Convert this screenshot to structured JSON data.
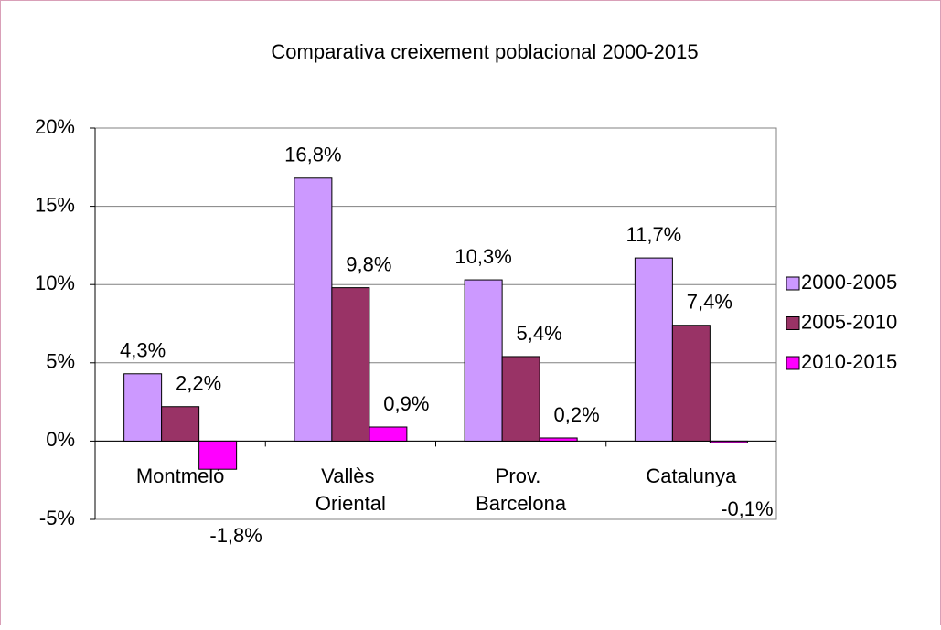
{
  "chart_data": {
    "type": "bar",
    "title": "Comparativa creixement poblacional 2000-2015",
    "categories": [
      "Montmeló",
      "Vallès Oriental",
      "Prov. Barcelona",
      "Catalunya"
    ],
    "series": [
      {
        "name": "2000-2005",
        "color": "#cc99ff",
        "values": [
          4.3,
          16.8,
          10.3,
          11.7
        ],
        "value_labels": [
          "4,3%",
          "16,8%",
          "10,3%",
          "11,7%"
        ]
      },
      {
        "name": "2005-2010",
        "color": "#993366",
        "values": [
          2.2,
          9.8,
          5.4,
          7.4
        ],
        "value_labels": [
          "2,2%",
          "9,8%",
          "5,4%",
          "7,4%"
        ]
      },
      {
        "name": "2010-2015",
        "color": "#ff00ff",
        "values": [
          -1.8,
          0.9,
          0.2,
          -0.1
        ],
        "value_labels": [
          "-1,8%",
          "0,9%",
          "0,2%",
          "-0,1%"
        ]
      }
    ],
    "ylim": [
      -5,
      20
    ],
    "yticks": [
      {
        "value": -5,
        "label": "-5%"
      },
      {
        "value": 0,
        "label": "0%"
      },
      {
        "value": 5,
        "label": "5%"
      },
      {
        "value": 10,
        "label": "10%"
      },
      {
        "value": 15,
        "label": "15%"
      },
      {
        "value": 20,
        "label": "20%"
      }
    ],
    "grid": true,
    "legend": "right"
  }
}
